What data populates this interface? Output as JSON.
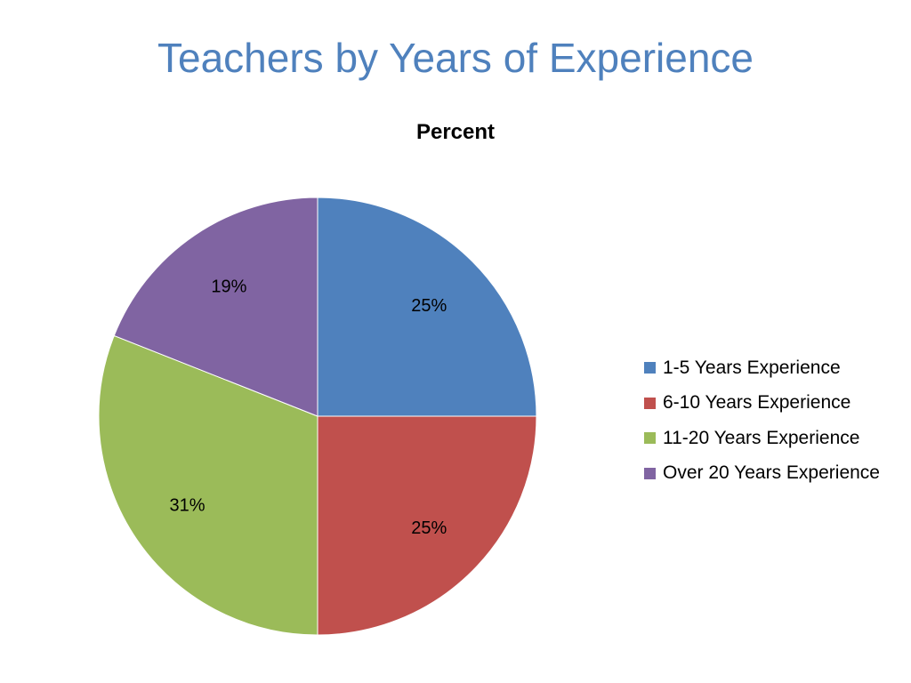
{
  "slide": {
    "title": "Teachers by Years of Experience"
  },
  "chart_data": {
    "type": "pie",
    "title": "Percent",
    "categories": [
      "1-5 Years Experience",
      "6-10 Years Experience",
      "11-20 Years Experience",
      "Over 20 Years Experience"
    ],
    "values": [
      25,
      25,
      31,
      19
    ],
    "data_labels": [
      "25%",
      "25%",
      "31%",
      "19%"
    ],
    "colors": [
      "#4f81bd",
      "#c0504d",
      "#9bbb59",
      "#8064a2"
    ],
    "start_angle_deg": 0,
    "direction": "clockwise",
    "legend_position": "right"
  }
}
